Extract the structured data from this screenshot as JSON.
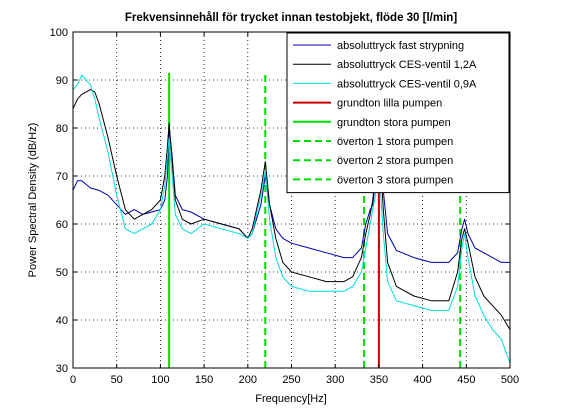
{
  "chart_data": {
    "type": "line",
    "title": "Frekvensinnehåll för trycket innan testobjekt, flöde 30 [l/min]",
    "xlabel": "Frequency[Hz]",
    "ylabel": "Power Spectral Density (dB/Hz)",
    "xlim": [
      0,
      500
    ],
    "ylim": [
      30,
      100
    ],
    "xticks": [
      0,
      50,
      100,
      150,
      200,
      250,
      300,
      350,
      400,
      450,
      500
    ],
    "yticks": [
      30,
      40,
      50,
      60,
      70,
      80,
      90,
      100
    ],
    "grid": "dotted",
    "legend_position": "top-right",
    "series": [
      {
        "name": "absoluttryck fast strypning",
        "color": "#0000aa",
        "style": "solid",
        "x": [
          0,
          5,
          10,
          20,
          30,
          40,
          50,
          60,
          70,
          80,
          90,
          100,
          105,
          108,
          110,
          113,
          117,
          125,
          135,
          150,
          170,
          190,
          200,
          205,
          210,
          215,
          220,
          225,
          232,
          240,
          250,
          270,
          290,
          310,
          320,
          330,
          335,
          340,
          343,
          346,
          350,
          355,
          360,
          370,
          390,
          410,
          430,
          440,
          445,
          448,
          452,
          460,
          470,
          480,
          490,
          500
        ],
        "y": [
          67,
          69,
          69,
          67.5,
          67,
          66,
          64,
          62,
          63,
          62,
          62.5,
          63,
          65,
          70,
          80,
          75,
          66,
          63,
          62.5,
          61,
          60,
          59,
          57,
          58,
          61,
          64,
          70,
          64,
          59,
          57,
          56,
          55,
          54,
          53,
          53,
          55,
          60,
          63,
          64,
          69,
          78,
          67,
          58,
          54.5,
          53,
          52,
          52,
          54,
          59,
          61,
          58,
          55,
          54,
          53,
          52,
          52
        ]
      },
      {
        "name": "absoluttryck CES-ventil 1,2A",
        "color": "#000000",
        "style": "solid",
        "x": [
          0,
          5,
          10,
          20,
          25,
          30,
          40,
          50,
          60,
          70,
          80,
          90,
          100,
          105,
          108,
          110,
          113,
          117,
          125,
          135,
          150,
          170,
          190,
          200,
          205,
          210,
          215,
          220,
          225,
          232,
          240,
          250,
          270,
          290,
          310,
          320,
          330,
          335,
          340,
          343,
          346,
          350,
          355,
          360,
          370,
          390,
          410,
          430,
          440,
          445,
          448,
          452,
          460,
          470,
          480,
          490,
          500
        ],
        "y": [
          84,
          86,
          87,
          88,
          87.5,
          85,
          78,
          70,
          63,
          61,
          62,
          63,
          65,
          70,
          76,
          81,
          74,
          65,
          61,
          60,
          61,
          60,
          59,
          57,
          59,
          63,
          67,
          73,
          64,
          57,
          52,
          50,
          49,
          48,
          48,
          49,
          53,
          58,
          62,
          65,
          71,
          79,
          63,
          52,
          47,
          45,
          44,
          44,
          50,
          57,
          59,
          56,
          49,
          45,
          43,
          41,
          38
        ]
      },
      {
        "name": "absoluttryck CES-ventil 0,9A",
        "color": "#00dddd",
        "style": "solid",
        "x": [
          0,
          5,
          10,
          15,
          20,
          25,
          30,
          40,
          50,
          60,
          70,
          80,
          90,
          100,
          105,
          108,
          110,
          113,
          117,
          125,
          135,
          150,
          170,
          190,
          200,
          205,
          210,
          215,
          220,
          225,
          232,
          240,
          250,
          270,
          290,
          310,
          320,
          330,
          335,
          340,
          343,
          346,
          350,
          355,
          360,
          370,
          390,
          410,
          430,
          440,
          445,
          448,
          452,
          460,
          470,
          480,
          490,
          500
        ],
        "y": [
          88,
          89,
          91,
          90,
          89,
          86,
          82,
          75,
          66,
          59,
          58,
          59,
          60,
          63,
          68,
          74,
          78,
          71,
          62,
          59,
          58,
          60,
          59,
          58,
          57,
          58,
          62,
          66,
          71,
          61,
          53,
          49,
          47,
          46,
          46,
          46,
          47,
          50,
          55,
          60,
          63,
          66,
          72,
          58,
          48,
          44,
          43,
          42,
          42,
          47,
          55,
          58,
          53,
          45,
          41,
          38,
          36,
          31
        ]
      }
    ],
    "vertical_markers": [
      {
        "name": "grundton lilla pumpen",
        "color": "#cc0000",
        "style": "solid",
        "x": 350
      },
      {
        "name": "grundton stora pumpen",
        "color": "#00dd00",
        "style": "solid",
        "x": 110
      },
      {
        "name": "överton 1 stora pumpen",
        "color": "#00dd00",
        "style": "dashed",
        "x": 220
      },
      {
        "name": "överton 2 stora pumpen",
        "color": "#00dd00",
        "style": "dashed",
        "x": 333
      },
      {
        "name": "överton 3 stora pumpen",
        "color": "#00dd00",
        "style": "dashed",
        "x": 443
      }
    ],
    "legend": [
      {
        "label": "absoluttryck fast strypning",
        "color": "#0000aa",
        "style": "solid"
      },
      {
        "label": "absoluttryck CES-ventil 1,2A",
        "color": "#000000",
        "style": "solid"
      },
      {
        "label": "absoluttryck CES-ventil 0,9A",
        "color": "#00dddd",
        "style": "solid"
      },
      {
        "label": "grundton lilla pumpen",
        "color": "#cc0000",
        "style": "solid"
      },
      {
        "label": "grundton stora pumpen",
        "color": "#00dd00",
        "style": "solid"
      },
      {
        "label": "överton 1 stora pumpen",
        "color": "#00dd00",
        "style": "dashed"
      },
      {
        "label": "överton 2 stora pumpen",
        "color": "#00dd00",
        "style": "dashed"
      },
      {
        "label": "överton 3 stora pumpen",
        "color": "#00dd00",
        "style": "dashed"
      }
    ]
  }
}
